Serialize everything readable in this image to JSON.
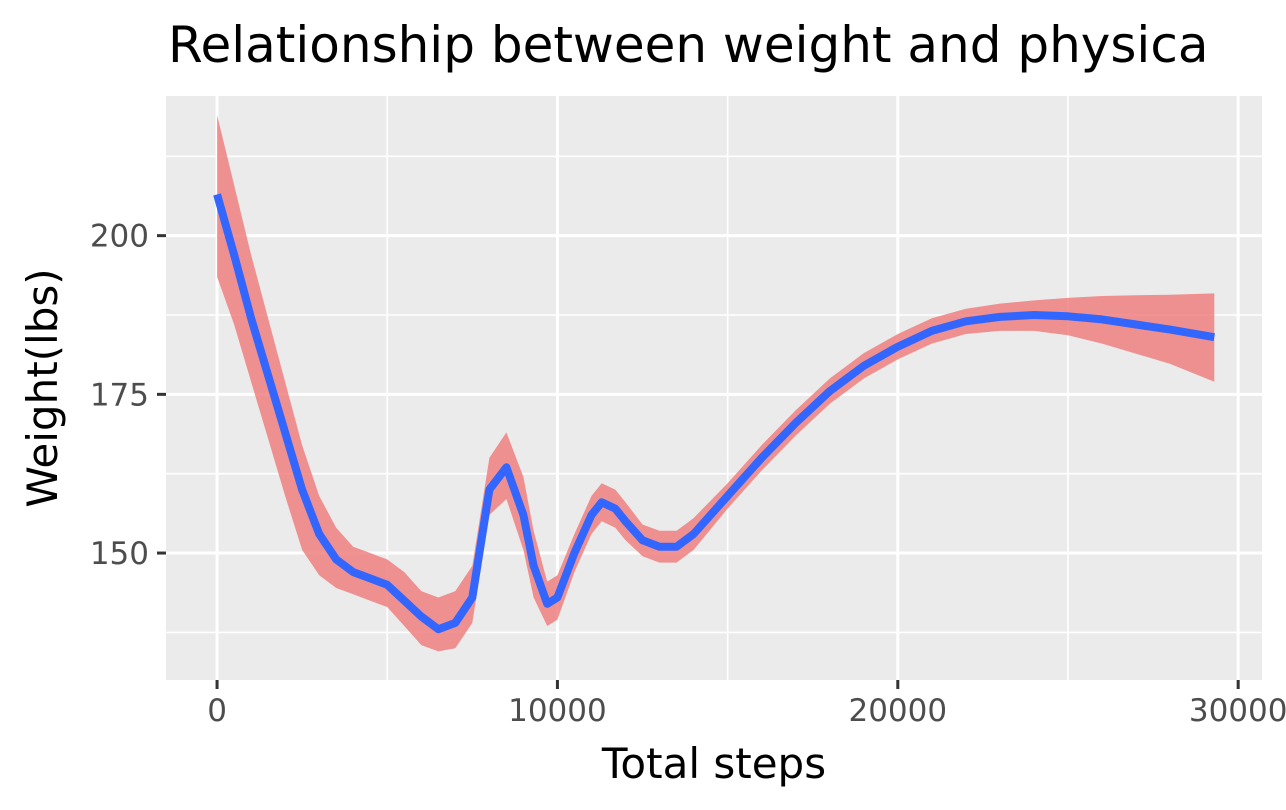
{
  "chart_data": {
    "type": "line",
    "title": "Relationship between weight and physica",
    "xlabel": "Total steps",
    "ylabel": "Weight(lbs)",
    "xlim": [
      -1500,
      30700
    ],
    "ylim": [
      130,
      222
    ],
    "x_ticks": [
      0,
      10000,
      20000,
      30000
    ],
    "x_tick_labels": [
      "0",
      "10000",
      "20000",
      "30000"
    ],
    "y_ticks": [
      150,
      175,
      200
    ],
    "y_tick_labels": [
      "150",
      "175",
      "200"
    ],
    "grid": true,
    "legend": "none",
    "colors": {
      "panel": "#ebebeb",
      "grid": "#ffffff",
      "line": "#3366ff",
      "ribbon": "#f08080"
    },
    "series": [
      {
        "x": [
          0,
          500,
          1000,
          1500,
          2000,
          2500,
          3000,
          3500,
          4000,
          4500,
          5000,
          5500,
          6000,
          6500,
          7000,
          7500,
          8000,
          8500,
          9000,
          9300,
          9700,
          10000,
          10500,
          11000,
          11300,
          11700,
          12000,
          12500,
          13000,
          13500,
          14000,
          15000,
          16000,
          17000,
          18000,
          19000,
          20000,
          21000,
          22000,
          23000,
          24000,
          25000,
          26000,
          27000,
          28000,
          29300
        ],
        "values": [
          206.5,
          197,
          187,
          178,
          169,
          160,
          153,
          149,
          147,
          146,
          145,
          142.5,
          140,
          138,
          139,
          143,
          160,
          163.5,
          156,
          148,
          142,
          143,
          150,
          156,
          158,
          157,
          155,
          152,
          151,
          151,
          153,
          159,
          165,
          170.5,
          175.5,
          179.5,
          182.5,
          185,
          186.5,
          187.2,
          187.5,
          187.3,
          186.8,
          186,
          185.2,
          184
        ],
        "ci_upper": [
          219,
          208,
          197,
          187,
          177,
          167,
          159,
          154,
          151,
          150,
          149,
          147,
          144,
          143,
          144,
          148,
          165,
          169,
          162,
          153.5,
          145.5,
          146.5,
          153,
          159,
          161,
          160,
          158,
          154.5,
          153.5,
          153.5,
          155.5,
          161,
          167,
          172.5,
          177.5,
          181.5,
          184.5,
          187,
          188.5,
          189.3,
          189.8,
          190.2,
          190.5,
          190.6,
          190.7,
          190.9
        ],
        "ci_lower": [
          193.5,
          186,
          177,
          168,
          159,
          150.5,
          146.5,
          144.5,
          143.5,
          142.5,
          141.5,
          138.5,
          135.5,
          134.5,
          135,
          139,
          156,
          158.5,
          150.5,
          143,
          138.5,
          139.5,
          147,
          153,
          155,
          154,
          152,
          149.5,
          148.5,
          148.5,
          150.5,
          157,
          163,
          168.5,
          173.5,
          177.5,
          180.5,
          183,
          184.5,
          185,
          185,
          184.3,
          183,
          181.4,
          179.8,
          177
        ]
      }
    ]
  }
}
